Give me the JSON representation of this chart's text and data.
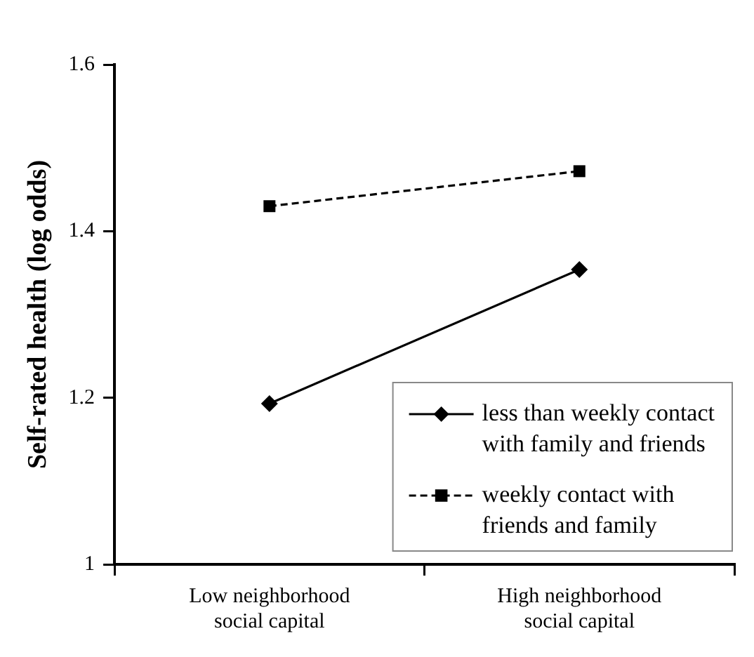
{
  "chart_data": {
    "type": "line",
    "ylabel": "Self-rated health (log odds)",
    "categories": [
      "Low neighborhood social capital",
      "High neighborhood social capital"
    ],
    "series": [
      {
        "name": "less than weekly contact with family and friends",
        "color": "#000000",
        "values": [
          1.193,
          1.354
        ],
        "marker": "diamond",
        "line_style": "solid"
      },
      {
        "name": "weekly contact with friends and family",
        "color": "#000000",
        "values": [
          1.43,
          1.472
        ],
        "marker": "square",
        "line_style": "dashed"
      }
    ],
    "ylim": [
      1,
      1.6
    ],
    "yticks": [
      1,
      1.2,
      1.4,
      1.6
    ],
    "grid": false,
    "legend": "bottom right"
  }
}
